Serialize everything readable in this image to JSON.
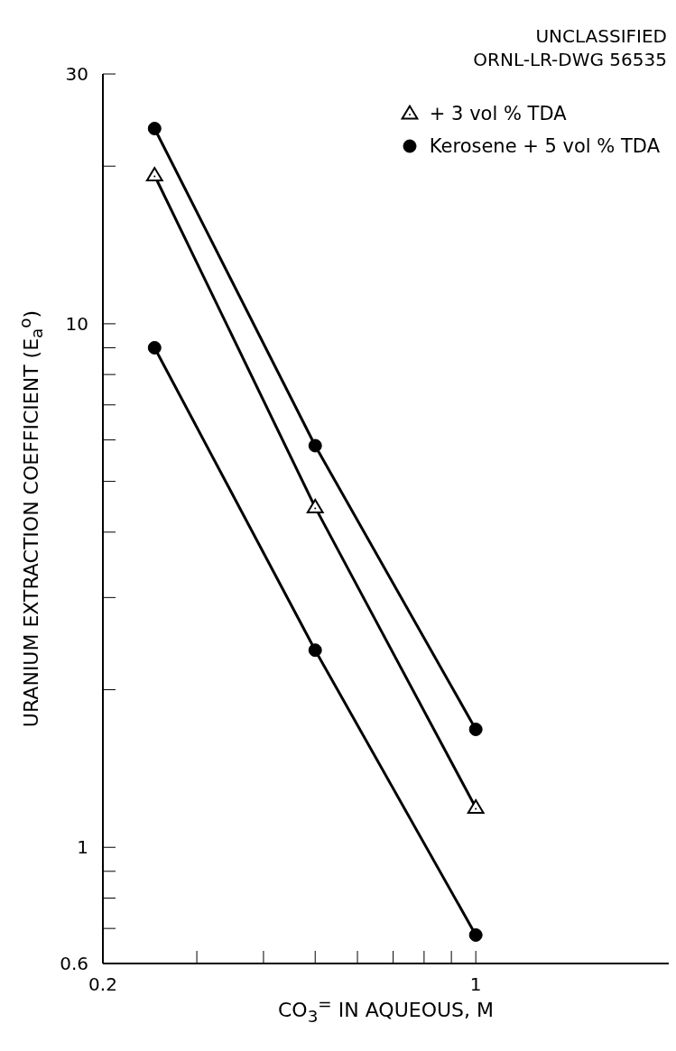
{
  "chart_data": {
    "type": "line",
    "annotations": [
      "UNCLASSIFIED",
      "ORNL-LR-DWG 56535"
    ],
    "xlabel": "CO$_{3}$$^{=}$ IN AQUEOUS, M",
    "ylabel": "URANIUM EXTRACTION COEFFICIENT (E$_{a}$$^{o}$)",
    "log": "xy",
    "xlim": [
      0.2,
      2.3
    ],
    "ylim": [
      0.6,
      30
    ],
    "xticks": [
      0.2,
      {
        "value": 0.3,
        "label": null
      },
      {
        "value": 0.4,
        "label": null
      },
      {
        "value": 0.5,
        "label": null
      },
      {
        "value": 0.6,
        "label": null
      },
      {
        "value": 0.7,
        "label": null
      },
      {
        "value": 0.8,
        "label": null
      },
      {
        "value": 0.9,
        "label": null
      },
      1
    ],
    "yticks": [
      0.6,
      {
        "value": 0.7,
        "label": null
      },
      {
        "value": 0.8,
        "label": null
      },
      {
        "value": 0.9,
        "label": null
      },
      1,
      {
        "value": 2,
        "label": null
      },
      {
        "value": 3,
        "label": null
      },
      {
        "value": 4,
        "label": null
      },
      {
        "value": 5,
        "label": null
      },
      {
        "value": 6,
        "label": null
      },
      {
        "value": 7,
        "label": null
      },
      {
        "value": 8,
        "label": null
      },
      {
        "value": 9,
        "label": null
      },
      10,
      {
        "value": 20,
        "label": null
      },
      30
    ],
    "x": [
      0.25,
      0.5,
      1
    ],
    "legend": "top right",
    "line_style": "solid",
    "grid": false,
    "series": [
      {
        "color": "#000000",
        "marker": "circle",
        "values": [
          9.0,
          2.38,
          0.68
        ]
      },
      {
        "name": "+ 3 vol % TDA",
        "color": "#000000",
        "marker": "triangle",
        "values": [
          19.2,
          4.46,
          1.19
        ]
      },
      {
        "name": "Kerosene + 5 vol % TDA",
        "color": "#000000",
        "marker": "circle",
        "values": [
          23.6,
          5.85,
          1.68
        ]
      }
    ]
  }
}
